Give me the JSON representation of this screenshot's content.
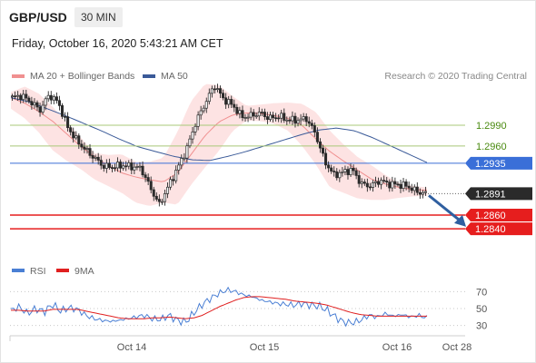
{
  "header": {
    "symbol": "GBP/USD",
    "timeframe": "30 MIN",
    "datetime": "Friday, October 16, 2020 5:43:21 AM CET"
  },
  "colors": {
    "price": "#2a2a2a",
    "ma20": "#f09090",
    "band_fill": "#fde0e0",
    "ma50": "#3a5a98",
    "green_level": "#a8c878",
    "blue_level": "#3a6fd8",
    "red_level": "#e61e1e",
    "current": "#2a2a2a",
    "arrow": "#2f5fa0",
    "rsi": "#4a7fd4",
    "rsi_ma": "#e02020",
    "label_green": "#4a8a10"
  },
  "chart_data": [
    {
      "type": "line",
      "title": "GBP/USD",
      "legend": [
        {
          "name": "MA 20 + Bollinger Bands",
          "color": "#f09090"
        },
        {
          "name": "MA 50",
          "color": "#3a5a98"
        }
      ],
      "watermark": "Research © 2020 Trading Central",
      "x_ticks": [
        "Oct 14",
        "Oct 15",
        "Oct 16",
        "Oct 28"
      ],
      "ylim": [
        1.281,
        1.304
      ],
      "levels": [
        {
          "value": 1.299,
          "label": "1.2990",
          "kind": "resistance"
        },
        {
          "value": 1.296,
          "label": "1.2960",
          "kind": "resistance"
        },
        {
          "value": 1.2935,
          "label": "1.2935",
          "kind": "pivot"
        },
        {
          "value": 1.2891,
          "label": "1.2891",
          "kind": "current"
        },
        {
          "value": 1.286,
          "label": "1.2860",
          "kind": "support"
        },
        {
          "value": 1.284,
          "label": "1.2840",
          "kind": "support"
        }
      ],
      "price_path": [
        1.303,
        1.3033,
        1.3024,
        1.3012,
        1.3034,
        1.3023,
        1.2988,
        1.2968,
        1.2954,
        1.2942,
        1.293,
        1.293,
        1.2932,
        1.293,
        1.2928,
        1.29,
        1.2875,
        1.2902,
        1.2928,
        1.2956,
        1.2995,
        1.3022,
        1.3048,
        1.3028,
        1.3019,
        1.3002,
        1.3004,
        1.3008,
        1.3,
        1.3003,
        1.2998,
        1.2997,
        1.3,
        1.2978,
        1.2938,
        1.2918,
        1.2922,
        1.2926,
        1.2905,
        1.2902,
        1.291,
        1.2905,
        1.2904,
        1.2902,
        1.2894,
        1.2891
      ],
      "ma20": [
        1.303,
        1.3022,
        1.301,
        1.2996,
        1.2978,
        1.296,
        1.2945,
        1.2932,
        1.2921,
        1.2915,
        1.2911,
        1.2908,
        1.2921,
        1.2948,
        1.2975,
        1.2995,
        1.3005,
        1.3008,
        1.3007,
        1.3004,
        1.3,
        1.299,
        1.297,
        1.2952,
        1.2938,
        1.2925,
        1.2912,
        1.2905,
        1.29,
        1.2897,
        1.2896
      ],
      "bb_upper": [
        1.3038,
        1.3046,
        1.3036,
        1.3017,
        1.2995,
        1.2973,
        1.295,
        1.2947,
        1.2948,
        1.2937,
        1.2937,
        1.2943,
        1.298,
        1.3025,
        1.305,
        1.3048,
        1.3032,
        1.3018,
        1.302,
        1.3022,
        1.3023,
        1.3021,
        1.3009,
        1.2982,
        1.2962,
        1.2944,
        1.2932,
        1.2918,
        1.2906,
        1.2902,
        1.29
      ],
      "bb_lower": [
        1.3014,
        1.3,
        1.298,
        1.2954,
        1.2939,
        1.2927,
        1.2912,
        1.2902,
        1.2892,
        1.2878,
        1.2873,
        1.2878,
        1.2875,
        1.2904,
        1.2929,
        1.2953,
        1.2982,
        1.2997,
        1.2996,
        1.2992,
        1.2982,
        1.296,
        1.2933,
        1.29,
        1.2892,
        1.2884,
        1.2882,
        1.2882,
        1.2885,
        1.2887,
        1.2888
      ],
      "ma50": [
        1.303,
        1.3024,
        1.3014,
        1.3004,
        1.2993,
        1.2982,
        1.297,
        1.2959,
        1.2952,
        1.2945,
        1.294,
        1.2939,
        1.2945,
        1.2952,
        1.296,
        1.2968,
        1.2976,
        1.2983,
        1.2986,
        1.2982,
        1.2972,
        1.296,
        1.2948,
        1.2936
      ],
      "projection": {
        "from": 1.2891,
        "to": 1.2847
      }
    },
    {
      "type": "line",
      "title": "RSI",
      "legend": [
        {
          "name": "RSI",
          "color": "#4a7fd4"
        },
        {
          "name": "9MA",
          "color": "#e02020"
        }
      ],
      "ylim": [
        20,
        80
      ],
      "y_ticks": [
        70,
        50,
        30
      ],
      "y_tick_labels": [
        "70",
        "50",
        "30"
      ],
      "rsi": [
        48,
        52,
        44,
        50,
        46,
        55,
        47,
        51,
        49,
        42,
        38,
        36,
        35,
        36,
        38,
        40,
        42,
        38,
        37,
        42,
        36,
        34,
        45,
        55,
        62,
        68,
        72,
        70,
        66,
        64,
        60,
        58,
        56,
        55,
        54,
        56,
        54,
        53,
        48,
        40,
        34,
        33,
        36,
        42,
        40,
        44,
        41,
        43,
        40,
        42,
        39
      ],
      "rsi_ma": [
        48,
        48,
        47,
        47,
        47,
        49,
        49,
        49,
        49,
        47,
        45,
        43,
        41,
        39,
        38,
        38,
        38,
        39,
        39,
        40,
        39,
        38,
        39,
        42,
        47,
        52,
        56,
        60,
        63,
        64,
        64,
        63,
        62,
        61,
        59,
        58,
        57,
        56,
        54,
        51,
        48,
        45,
        43,
        42,
        41,
        41,
        41,
        41,
        41,
        41,
        41
      ]
    }
  ]
}
